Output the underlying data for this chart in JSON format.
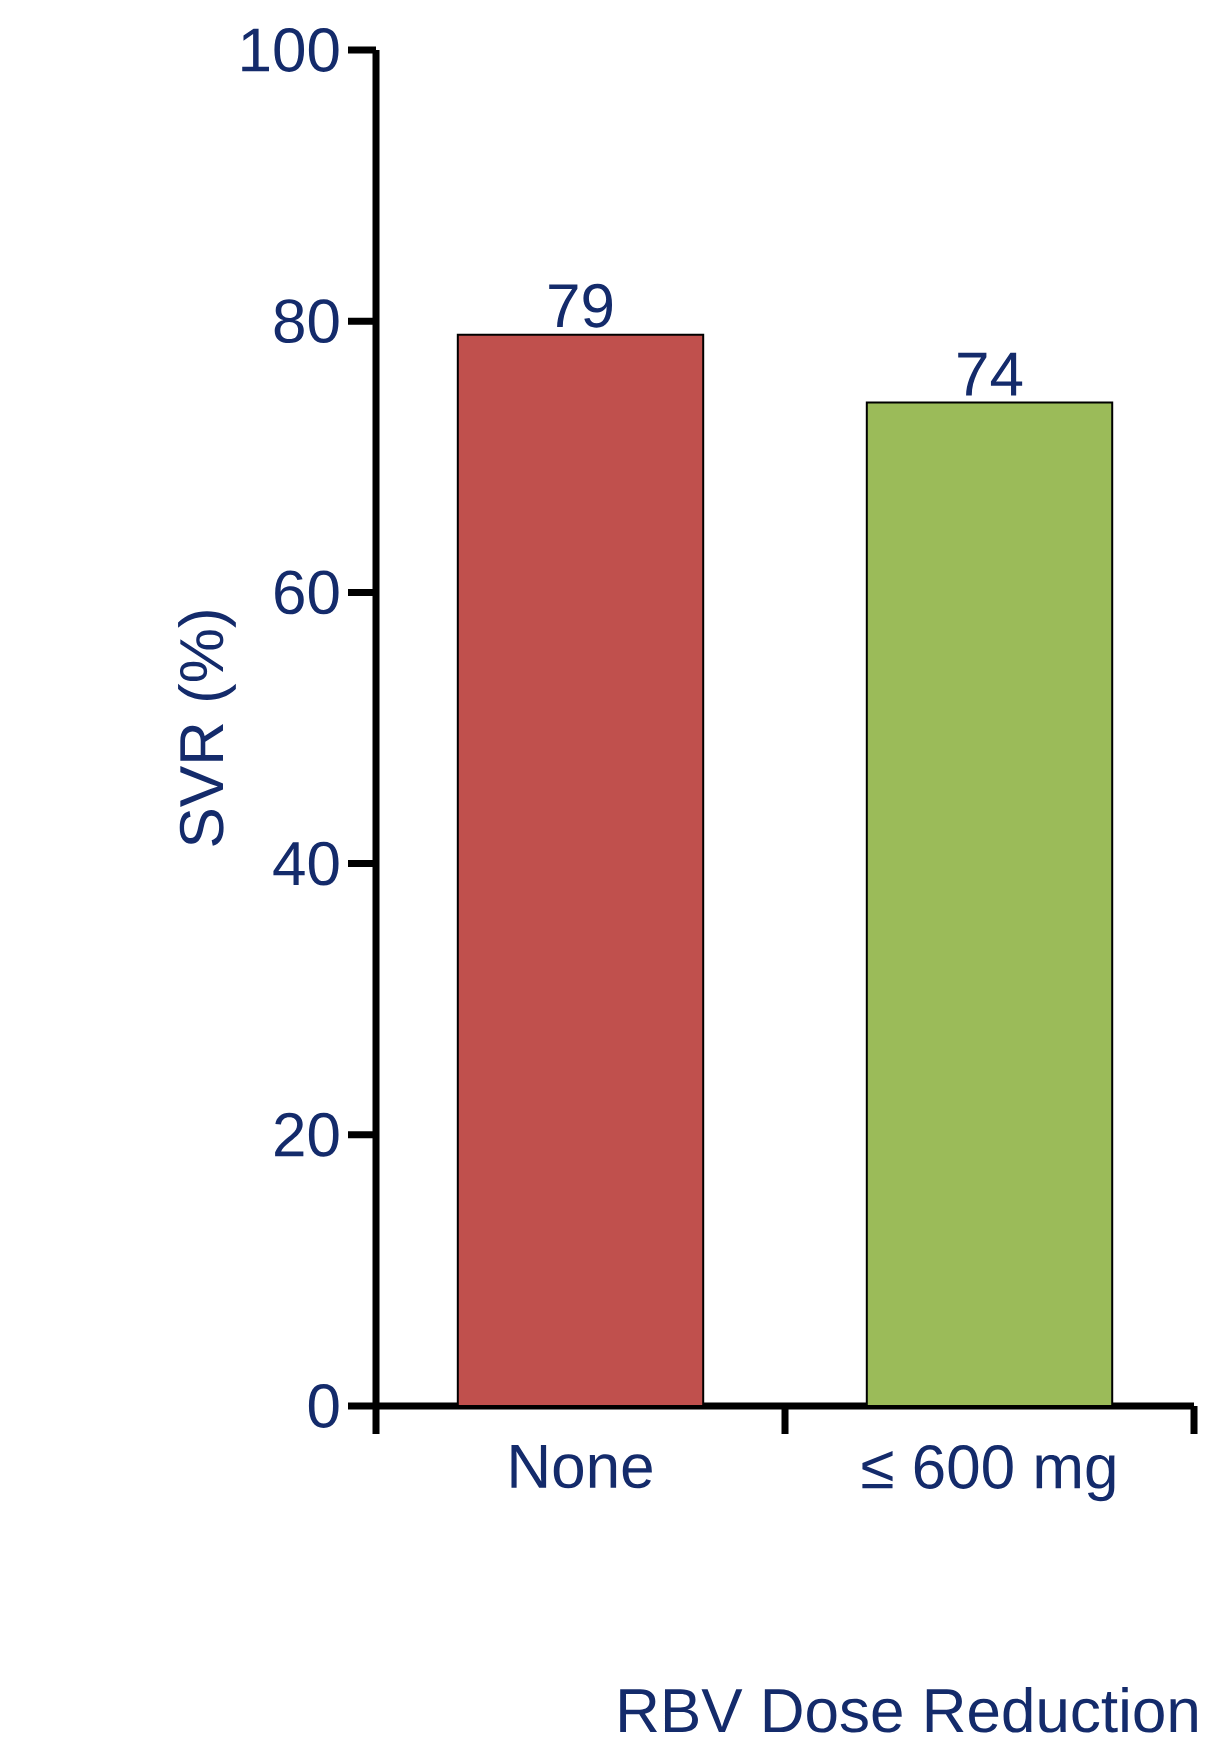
{
  "chart_data": {
    "type": "bar",
    "xlabel": "RBV Dose Reduction",
    "ylabel": "SVR (%)",
    "categories": [
      "None",
      "≤ 600 mg"
    ],
    "values": [
      79,
      74
    ],
    "colors": [
      "#c0504d",
      "#9bbb59"
    ],
    "ylim": [
      0,
      100
    ],
    "yticks": [
      0,
      20,
      40,
      60,
      80,
      100
    ],
    "data_labels": true
  }
}
